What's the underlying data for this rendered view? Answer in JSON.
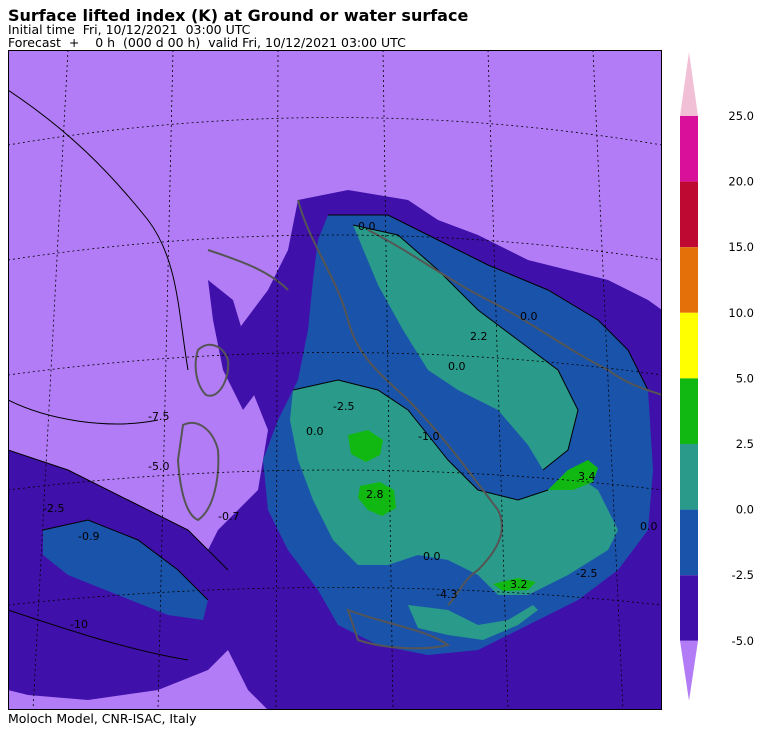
{
  "header": {
    "title": "Surface lifted index (K) at Ground or water surface",
    "initial_time": "Initial time  Fri, 10/12/2021  03:00 UTC",
    "forecast": "Forecast  +    0 h  (000 d 00 h)  valid Fri, 10/12/2021 03:00 UTC"
  },
  "footer": {
    "credit": "Moloch Model, CNR-ISAC, Italy"
  },
  "colorbar": {
    "labels": [
      "25.0",
      "20.0",
      "15.0",
      "10.0",
      "5.0",
      "2.5",
      "0.0",
      "-2.5",
      "-5.0"
    ],
    "colors": [
      "#f2c0d6",
      "#d8109a",
      "#be0a32",
      "#e4700a",
      "#ffff00",
      "#12b812",
      "#2a9a8a",
      "#1a54aa",
      "#4010aa",
      "#b27cf6"
    ]
  },
  "map": {
    "fill_colors": {
      "below_minus5": "#b27cf6",
      "minus5_to_minus2_5": "#4010aa",
      "minus2_5_to_0": "#1a54aa",
      "zero_to_2_5": "#2a9a8a",
      "two5_to_5": "#12b812"
    },
    "contour_labels": [
      "0.0",
      "2.2",
      "0.0",
      "0.0",
      "-1.0",
      "-2.5",
      "2.8",
      "3.4",
      "0.0",
      "3.2",
      "-4.3",
      "-2.5",
      "0.0",
      "-0.9",
      "-2.5",
      "-5.0",
      "-7.5",
      "-10",
      "-0.7",
      "0.0"
    ]
  }
}
